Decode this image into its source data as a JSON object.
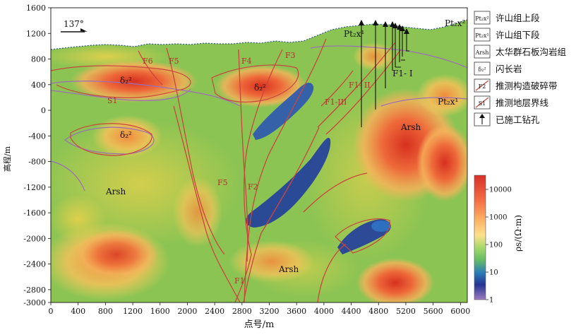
{
  "axes": {
    "y_title": "高程/m",
    "x_title": "点号/m",
    "y_ticks": [
      "1600",
      "1200",
      "800",
      "400",
      "0",
      "-400",
      "-800",
      "-1200",
      "-1600",
      "-2000",
      "-2400",
      "-2800",
      "-3000"
    ],
    "x_ticks": [
      "0",
      "400",
      "800",
      "1200",
      "1600",
      "2000",
      "2400",
      "2800",
      "3200",
      "3600",
      "4000",
      "4400",
      "4800",
      "5200",
      "5600",
      "6000"
    ]
  },
  "azimuth": "137°",
  "section_labels": {
    "pt_upper_top": "Pt₂x²",
    "pt_lower_top": "Pt₂x¹",
    "pt_lower_right": "Pt₂x¹",
    "arsh_right": "Arsh",
    "arsh_left": "Arsh",
    "arsh_bottom": "Arsh",
    "diorite_a": "δ₂²",
    "diorite_b": "δ₂²",
    "diorite_c": "δ₂²",
    "s1": "S1",
    "f1_i": "F1- I",
    "f1_ii": "F1- II",
    "f1_iii": "F1-III"
  },
  "faults": [
    "F1",
    "F2",
    "F3",
    "F4",
    "F5",
    "F5",
    "F6"
  ],
  "legend": [
    {
      "symbol": "Pt₂x²",
      "label": "许山组上段"
    },
    {
      "symbol": "Pt₂x¹",
      "label": "许山组下段"
    },
    {
      "symbol": "Arsh",
      "label": "太华群石板沟岩组"
    },
    {
      "symbol": "δ₂²",
      "label": "闪长岩"
    },
    {
      "symbol": "F2",
      "label": "推测构造破碎带"
    },
    {
      "symbol": "S1",
      "label": "推测地层界线"
    },
    {
      "symbol": "↑",
      "label": "已施工钻孔"
    }
  ],
  "colorbar": {
    "title": "ρs/(Ω·m)",
    "ticks": [
      "10000",
      "1000",
      "100",
      "10",
      "1"
    ]
  },
  "colors": {
    "high": "#d7301f",
    "mid_high": "#f4a259",
    "mid": "#e8d44d",
    "mid_low": "#8dc653",
    "low": "#2f6fc0",
    "fault": "#c9463d"
  }
}
